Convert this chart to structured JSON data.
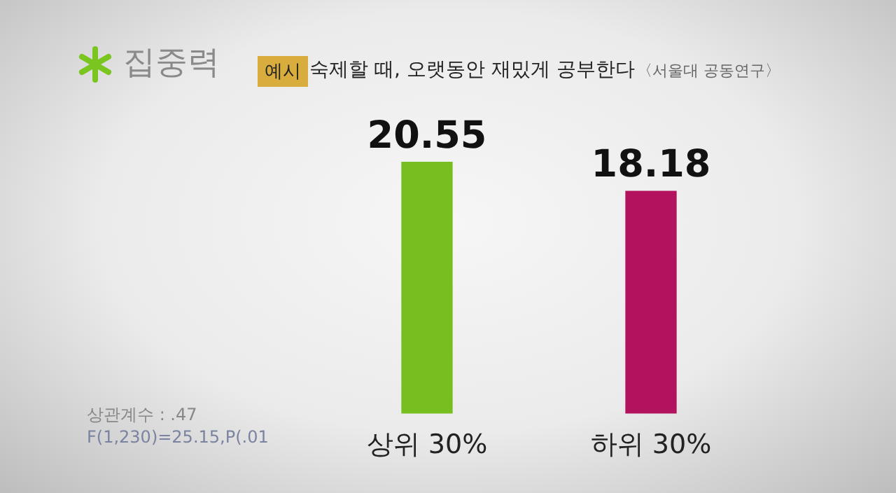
{
  "chart_data": {
    "type": "bar",
    "title": "집중력",
    "subtitle": "숙제할 때, 오랫동안 재밌게 공부한다",
    "annotations": [
      "예시",
      "〈서울대 공동연구〉",
      "상관계수 : .47",
      "F(1,230)=25.15,P(.01"
    ],
    "categories": [
      "상위 30%",
      "하위 30%"
    ],
    "values": [
      20.55,
      18.18
    ],
    "colors": [
      "#76bf1e",
      "#b3125f"
    ],
    "tick_labels": "x",
    "grid": false,
    "legend": false,
    "data_labels": true
  }
}
